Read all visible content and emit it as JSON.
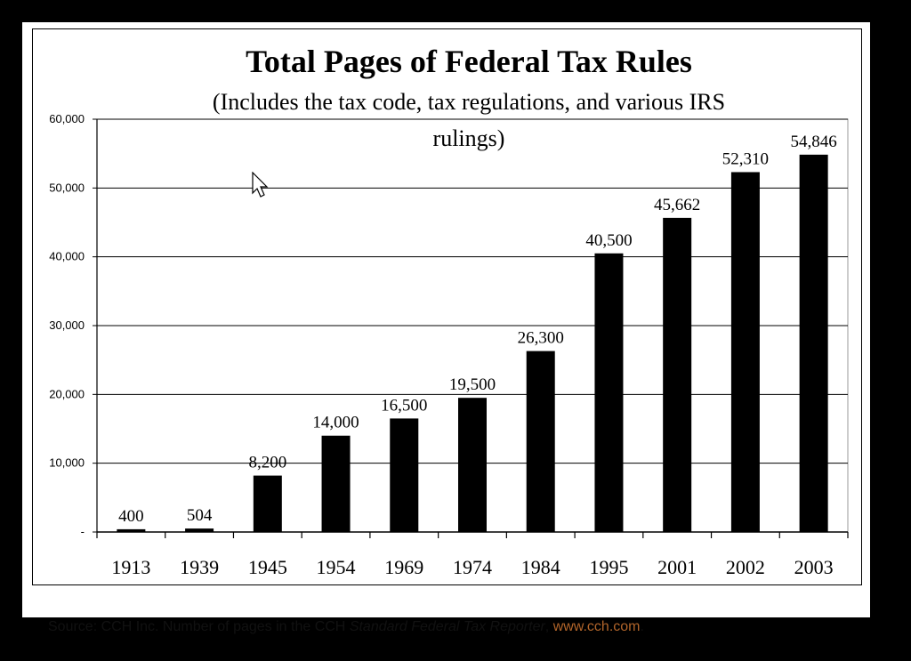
{
  "chart_data": {
    "type": "bar",
    "title": "Total Pages of Federal Tax Rules",
    "subtitle_line1": "(Includes the tax code, tax regulations, and various IRS",
    "subtitle_line2": "rulings)",
    "categories": [
      "1913",
      "1939",
      "1945",
      "1954",
      "1969",
      "1974",
      "1984",
      "1995",
      "2001",
      "2002",
      "2003"
    ],
    "values": [
      400,
      504,
      8200,
      14000,
      16500,
      19500,
      26300,
      40500,
      45662,
      52310,
      54846
    ],
    "data_labels": [
      "400",
      "504",
      "8,200",
      "14,000",
      "16,500",
      "19,500",
      "26,300",
      "40,500",
      "45,662",
      "52,310",
      "54,846"
    ],
    "ylim": [
      0,
      60000
    ],
    "yticks": [
      0,
      10000,
      20000,
      30000,
      40000,
      50000,
      60000
    ],
    "ytick_labels": [
      "-",
      "10,000",
      "20,000",
      "30,000",
      "40,000",
      "50,000",
      "60,000"
    ],
    "xlabel": "",
    "ylabel": "",
    "grid": true,
    "bar_color": "#000000"
  },
  "source": {
    "prefix": "Source: CCH Inc. Number of pages in the CCH ",
    "italic": "Standard Federal Tax Reporter",
    "sep": ", ",
    "link": "www.cch.com",
    "suffix": "."
  }
}
